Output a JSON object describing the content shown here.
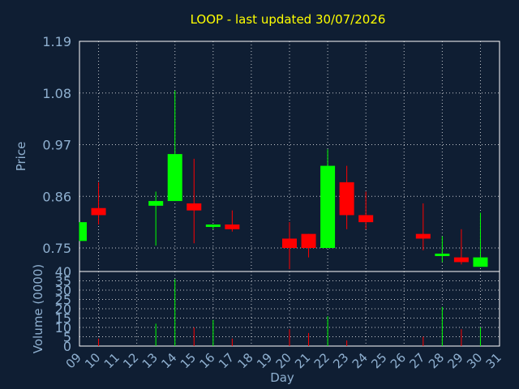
{
  "chart_data": [
    {
      "type": "candlestick",
      "title": "LOOP - last updated 30/07/2026",
      "ylabel": "Price",
      "ylim": [
        0.7,
        1.19
      ],
      "y_ticks": [
        "1.19",
        "1.08",
        "0.97",
        "0.86",
        "0.75"
      ],
      "y_tick_values": [
        1.19,
        1.08,
        0.97,
        0.86,
        0.75
      ],
      "grid": true,
      "colors": {
        "up": "#00ff00",
        "down": "#ff0000",
        "background": "#0f1e33",
        "title": "#ffff00",
        "axis_text": "#8fb0d0"
      },
      "x_labels": [
        "09",
        "10",
        "11",
        "12",
        "13",
        "14",
        "15",
        "16",
        "17",
        "18",
        "19",
        "20",
        "21",
        "22",
        "23",
        "24",
        "25",
        "26",
        "27",
        "28",
        "29",
        "30",
        "31"
      ],
      "candles": [
        {
          "day": "09",
          "open": 0.765,
          "close": 0.805,
          "high": 0.805,
          "low": 0.765
        },
        {
          "day": "10",
          "open": 0.835,
          "close": 0.82,
          "high": 0.89,
          "low": 0.8
        },
        {
          "day": "13",
          "open": 0.84,
          "close": 0.85,
          "high": 0.87,
          "low": 0.755
        },
        {
          "day": "14",
          "open": 0.85,
          "close": 0.95,
          "high": 1.085,
          "low": 0.85
        },
        {
          "day": "15",
          "open": 0.845,
          "close": 0.83,
          "high": 0.94,
          "low": 0.76
        },
        {
          "day": "16",
          "open": 0.8,
          "close": 0.8,
          "high": 0.8,
          "low": 0.79
        },
        {
          "day": "17",
          "open": 0.8,
          "close": 0.79,
          "high": 0.83,
          "low": 0.785
        },
        {
          "day": "20",
          "open": 0.77,
          "close": 0.75,
          "high": 0.805,
          "low": 0.705
        },
        {
          "day": "21",
          "open": 0.78,
          "close": 0.75,
          "high": 0.78,
          "low": 0.73
        },
        {
          "day": "22",
          "open": 0.75,
          "close": 0.925,
          "high": 0.96,
          "low": 0.75
        },
        {
          "day": "23",
          "open": 0.89,
          "close": 0.82,
          "high": 0.925,
          "low": 0.79
        },
        {
          "day": "24",
          "open": 0.82,
          "close": 0.805,
          "high": 0.87,
          "low": 0.79
        },
        {
          "day": "27",
          "open": 0.78,
          "close": 0.77,
          "high": 0.845,
          "low": 0.745
        },
        {
          "day": "28",
          "open": 0.735,
          "close": 0.738,
          "high": 0.775,
          "low": 0.72
        },
        {
          "day": "29",
          "open": 0.73,
          "close": 0.72,
          "high": 0.79,
          "low": 0.715
        },
        {
          "day": "30",
          "open": 0.71,
          "close": 0.73,
          "high": 0.825,
          "low": 0.71
        }
      ]
    },
    {
      "type": "bar",
      "ylabel": "Volume (0000)",
      "ylim": [
        0,
        40
      ],
      "y_ticks": [
        "40",
        "35",
        "30",
        "25",
        "20",
        "15",
        "10",
        "5",
        "0"
      ],
      "y_tick_values": [
        40,
        35,
        30,
        25,
        20,
        15,
        10,
        5,
        0
      ],
      "xlabel": "Day",
      "grid": true,
      "bars": [
        {
          "day": "10",
          "value": 4,
          "color": "#ff0000"
        },
        {
          "day": "13",
          "value": 12,
          "color": "#00ff00"
        },
        {
          "day": "14",
          "value": 36,
          "color": "#00ff00"
        },
        {
          "day": "15",
          "value": 10,
          "color": "#ff0000"
        },
        {
          "day": "16",
          "value": 14,
          "color": "#00ff00"
        },
        {
          "day": "17",
          "value": 4,
          "color": "#ff0000"
        },
        {
          "day": "20",
          "value": 9,
          "color": "#ff0000"
        },
        {
          "day": "21",
          "value": 7,
          "color": "#ff0000"
        },
        {
          "day": "22",
          "value": 16,
          "color": "#00ff00"
        },
        {
          "day": "23",
          "value": 3,
          "color": "#ff0000"
        },
        {
          "day": "27",
          "value": 5,
          "color": "#ff0000"
        },
        {
          "day": "28",
          "value": 21,
          "color": "#00ff00"
        },
        {
          "day": "29",
          "value": 9,
          "color": "#ff0000"
        },
        {
          "day": "30",
          "value": 10,
          "color": "#00ff00"
        }
      ]
    }
  ]
}
